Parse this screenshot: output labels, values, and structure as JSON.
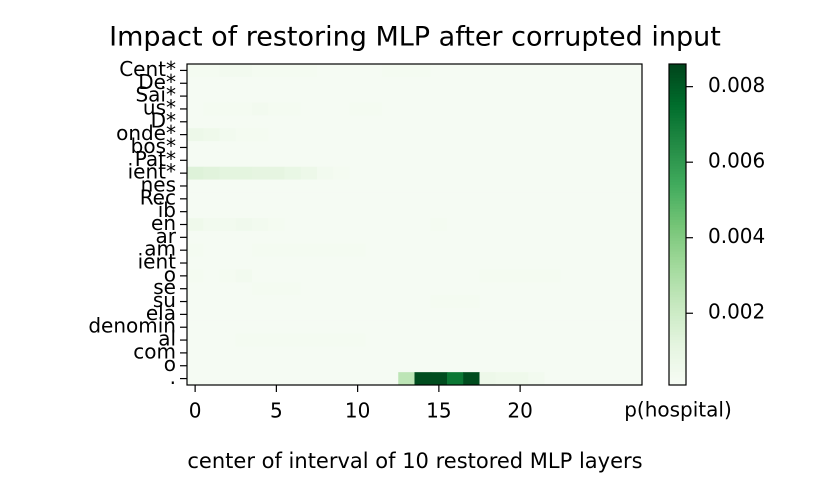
{
  "chart_data": {
    "type": "heatmap",
    "title": "Impact of restoring MLP after corrupted input",
    "xlabel": "center of interval of 10 restored MLP layers",
    "colorbar_label": "p(hospital)",
    "colormap": "Greens",
    "xlim": [
      -0.5,
      27.5
    ],
    "xticks": [
      0,
      5,
      10,
      15,
      20
    ],
    "zlim": [
      0.0001,
      0.0086
    ],
    "zticks": [
      0.002,
      0.004,
      0.006,
      0.008
    ],
    "categories": [
      "Cent*",
      "De*",
      "Sai*",
      "us*",
      "D*",
      "onde*",
      "bos*",
      "Pat*",
      "ient*",
      "nes",
      "Rec",
      "ib",
      "en",
      "ar",
      "am",
      "ient",
      "o",
      "se",
      "su",
      "ela",
      "denomin",
      "al",
      "com",
      "o",
      "."
    ],
    "values": [
      [
        0.0003,
        0.0003,
        0.0004,
        0.0004,
        0.0003,
        0.0003,
        0.0003,
        0.0003,
        0.0002,
        0.0002,
        0.0002,
        0.0002,
        0.0003,
        0.0003,
        0.0003,
        0.0002,
        0.0002,
        0.0002,
        0.0002,
        0.0002,
        0.0002,
        0.0002,
        0.0002,
        0.0002,
        0.0002,
        0.0002,
        0.0002,
        0.0002
      ],
      [
        0.0002,
        0.0002,
        0.0002,
        0.0002,
        0.0002,
        0.0002,
        0.0002,
        0.0002,
        0.0002,
        0.0002,
        0.0002,
        0.0002,
        0.0002,
        0.0002,
        0.0002,
        0.0002,
        0.0002,
        0.0002,
        0.0002,
        0.0002,
        0.0002,
        0.0002,
        0.0002,
        0.0002,
        0.0002,
        0.0002,
        0.0002,
        0.0002
      ],
      [
        0.0002,
        0.0002,
        0.0002,
        0.0002,
        0.0002,
        0.0002,
        0.0002,
        0.0002,
        0.0002,
        0.0002,
        0.0002,
        0.0002,
        0.0002,
        0.0002,
        0.0002,
        0.0002,
        0.0002,
        0.0002,
        0.0002,
        0.0002,
        0.0002,
        0.0002,
        0.0002,
        0.0002,
        0.0002,
        0.0002,
        0.0002,
        0.0002
      ],
      [
        0.0002,
        0.0003,
        0.0003,
        0.0003,
        0.0004,
        0.0003,
        0.0003,
        0.0002,
        0.0002,
        0.0002,
        0.0003,
        0.0003,
        0.0002,
        0.0002,
        0.0002,
        0.0002,
        0.0002,
        0.0002,
        0.0002,
        0.0002,
        0.0002,
        0.0002,
        0.0002,
        0.0002,
        0.0002,
        0.0002,
        0.0002,
        0.0002
      ],
      [
        0.0002,
        0.0002,
        0.0002,
        0.0002,
        0.0002,
        0.0002,
        0.0002,
        0.0002,
        0.0002,
        0.0002,
        0.0002,
        0.0002,
        0.0002,
        0.0002,
        0.0002,
        0.0002,
        0.0002,
        0.0002,
        0.0002,
        0.0002,
        0.0002,
        0.0002,
        0.0002,
        0.0002,
        0.0002,
        0.0002,
        0.0002,
        0.0002
      ],
      [
        0.0007,
        0.0006,
        0.0004,
        0.0003,
        0.0003,
        0.0002,
        0.0002,
        0.0002,
        0.0002,
        0.0002,
        0.0002,
        0.0002,
        0.0002,
        0.0002,
        0.0002,
        0.0002,
        0.0002,
        0.0002,
        0.0002,
        0.0002,
        0.0002,
        0.0002,
        0.0002,
        0.0002,
        0.0002,
        0.0002,
        0.0002,
        0.0002
      ],
      [
        0.0002,
        0.0002,
        0.0002,
        0.0002,
        0.0002,
        0.0002,
        0.0002,
        0.0002,
        0.0002,
        0.0002,
        0.0002,
        0.0002,
        0.0002,
        0.0002,
        0.0002,
        0.0002,
        0.0002,
        0.0002,
        0.0002,
        0.0002,
        0.0002,
        0.0002,
        0.0002,
        0.0002,
        0.0002,
        0.0002,
        0.0002,
        0.0002
      ],
      [
        0.0002,
        0.0002,
        0.0002,
        0.0002,
        0.0002,
        0.0002,
        0.0002,
        0.0002,
        0.0002,
        0.0002,
        0.0002,
        0.0002,
        0.0002,
        0.0002,
        0.0002,
        0.0002,
        0.0002,
        0.0002,
        0.0002,
        0.0002,
        0.0002,
        0.0002,
        0.0002,
        0.0002,
        0.0002,
        0.0002,
        0.0002,
        0.0002
      ],
      [
        0.0014,
        0.0013,
        0.0012,
        0.0012,
        0.0011,
        0.0011,
        0.0009,
        0.0007,
        0.0004,
        0.0003,
        0.0002,
        0.0002,
        0.0002,
        0.0002,
        0.0002,
        0.0002,
        0.0002,
        0.0002,
        0.0002,
        0.0002,
        0.0002,
        0.0002,
        0.0002,
        0.0002,
        0.0002,
        0.0002,
        0.0002,
        0.0002
      ],
      [
        0.0002,
        0.0002,
        0.0002,
        0.0002,
        0.0002,
        0.0002,
        0.0002,
        0.0002,
        0.0002,
        0.0002,
        0.0002,
        0.0002,
        0.0002,
        0.0002,
        0.0002,
        0.0002,
        0.0002,
        0.0002,
        0.0002,
        0.0002,
        0.0002,
        0.0002,
        0.0002,
        0.0002,
        0.0002,
        0.0002,
        0.0002,
        0.0002
      ],
      [
        0.0002,
        0.0002,
        0.0002,
        0.0002,
        0.0002,
        0.0002,
        0.0002,
        0.0002,
        0.0002,
        0.0002,
        0.0002,
        0.0002,
        0.0002,
        0.0002,
        0.0002,
        0.0002,
        0.0002,
        0.0002,
        0.0002,
        0.0002,
        0.0002,
        0.0002,
        0.0002,
        0.0002,
        0.0002,
        0.0002,
        0.0002,
        0.0002
      ],
      [
        0.0002,
        0.0002,
        0.0002,
        0.0002,
        0.0002,
        0.0002,
        0.0002,
        0.0002,
        0.0002,
        0.0002,
        0.0002,
        0.0002,
        0.0002,
        0.0002,
        0.0002,
        0.0002,
        0.0002,
        0.0002,
        0.0002,
        0.0002,
        0.0002,
        0.0002,
        0.0002,
        0.0002,
        0.0002,
        0.0002,
        0.0002,
        0.0002
      ],
      [
        0.0006,
        0.0004,
        0.0004,
        0.0005,
        0.0004,
        0.0003,
        0.0002,
        0.0002,
        0.0002,
        0.0002,
        0.0002,
        0.0002,
        0.0002,
        0.0002,
        0.0002,
        0.0003,
        0.0002,
        0.0002,
        0.0002,
        0.0002,
        0.0002,
        0.0002,
        0.0002,
        0.0002,
        0.0002,
        0.0002,
        0.0002,
        0.0002
      ],
      [
        0.0002,
        0.0002,
        0.0002,
        0.0002,
        0.0002,
        0.0002,
        0.0002,
        0.0002,
        0.0002,
        0.0002,
        0.0002,
        0.0002,
        0.0002,
        0.0002,
        0.0002,
        0.0002,
        0.0002,
        0.0002,
        0.0002,
        0.0002,
        0.0002,
        0.0002,
        0.0002,
        0.0002,
        0.0002,
        0.0002,
        0.0002,
        0.0002
      ],
      [
        0.0003,
        0.0002,
        0.0002,
        0.0002,
        0.0003,
        0.0003,
        0.0003,
        0.0003,
        0.0003,
        0.0003,
        0.0003,
        0.0002,
        0.0002,
        0.0002,
        0.0002,
        0.0002,
        0.0002,
        0.0002,
        0.0002,
        0.0002,
        0.0002,
        0.0002,
        0.0002,
        0.0002,
        0.0002,
        0.0002,
        0.0002,
        0.0002
      ],
      [
        0.0002,
        0.0002,
        0.0002,
        0.0002,
        0.0002,
        0.0002,
        0.0002,
        0.0002,
        0.0002,
        0.0002,
        0.0002,
        0.0002,
        0.0002,
        0.0002,
        0.0002,
        0.0002,
        0.0002,
        0.0002,
        0.0002,
        0.0002,
        0.0002,
        0.0002,
        0.0002,
        0.0002,
        0.0002,
        0.0002,
        0.0002,
        0.0002
      ],
      [
        0.0003,
        0.0002,
        0.0003,
        0.0004,
        0.0002,
        0.0002,
        0.0002,
        0.0002,
        0.0002,
        0.0002,
        0.0002,
        0.0002,
        0.0002,
        0.0002,
        0.0002,
        0.0002,
        0.0002,
        0.0002,
        0.0003,
        0.0003,
        0.0003,
        0.0003,
        0.0003,
        0.0002,
        0.0002,
        0.0002,
        0.0002,
        0.0002
      ],
      [
        0.0002,
        0.0002,
        0.0002,
        0.0002,
        0.0003,
        0.0003,
        0.0003,
        0.0002,
        0.0002,
        0.0002,
        0.0002,
        0.0002,
        0.0002,
        0.0002,
        0.0002,
        0.0002,
        0.0002,
        0.0002,
        0.0002,
        0.0002,
        0.0002,
        0.0002,
        0.0002,
        0.0002,
        0.0002,
        0.0002,
        0.0002,
        0.0002
      ],
      [
        0.0002,
        0.0002,
        0.0002,
        0.0002,
        0.0002,
        0.0002,
        0.0002,
        0.0002,
        0.0002,
        0.0002,
        0.0002,
        0.0002,
        0.0002,
        0.0002,
        0.0002,
        0.0003,
        0.0003,
        0.0003,
        0.0002,
        0.0002,
        0.0002,
        0.0002,
        0.0002,
        0.0002,
        0.0002,
        0.0002,
        0.0002,
        0.0002
      ],
      [
        0.0002,
        0.0002,
        0.0002,
        0.0002,
        0.0002,
        0.0002,
        0.0002,
        0.0002,
        0.0002,
        0.0002,
        0.0002,
        0.0002,
        0.0002,
        0.0002,
        0.0002,
        0.0002,
        0.0002,
        0.0002,
        0.0002,
        0.0002,
        0.0002,
        0.0002,
        0.0002,
        0.0002,
        0.0002,
        0.0002,
        0.0002,
        0.0002
      ],
      [
        0.0002,
        0.0002,
        0.0002,
        0.0002,
        0.0002,
        0.0002,
        0.0002,
        0.0002,
        0.0002,
        0.0002,
        0.0002,
        0.0002,
        0.0002,
        0.0002,
        0.0002,
        0.0002,
        0.0002,
        0.0002,
        0.0002,
        0.0002,
        0.0002,
        0.0002,
        0.0002,
        0.0002,
        0.0002,
        0.0002,
        0.0002,
        0.0002
      ],
      [
        0.0002,
        0.0002,
        0.0002,
        0.0003,
        0.0003,
        0.0003,
        0.0003,
        0.0003,
        0.0003,
        0.0003,
        0.0003,
        0.0002,
        0.0002,
        0.0002,
        0.0002,
        0.0002,
        0.0002,
        0.0002,
        0.0002,
        0.0002,
        0.0002,
        0.0002,
        0.0002,
        0.0002,
        0.0002,
        0.0002,
        0.0002,
        0.0002
      ],
      [
        0.0002,
        0.0002,
        0.0002,
        0.0002,
        0.0002,
        0.0002,
        0.0002,
        0.0002,
        0.0002,
        0.0002,
        0.0002,
        0.0002,
        0.0002,
        0.0002,
        0.0002,
        0.0002,
        0.0002,
        0.0002,
        0.0002,
        0.0002,
        0.0002,
        0.0002,
        0.0002,
        0.0002,
        0.0002,
        0.0002,
        0.0002,
        0.0002
      ],
      [
        0.0002,
        0.0002,
        0.0002,
        0.0002,
        0.0002,
        0.0002,
        0.0002,
        0.0002,
        0.0002,
        0.0002,
        0.0002,
        0.0002,
        0.0002,
        0.0002,
        0.0002,
        0.0002,
        0.0002,
        0.0002,
        0.0002,
        0.0002,
        0.0002,
        0.0002,
        0.0002,
        0.0002,
        0.0002,
        0.0002,
        0.0002,
        0.0002
      ],
      [
        0.0002,
        0.0002,
        0.0002,
        0.0002,
        0.0002,
        0.0002,
        0.0002,
        0.0002,
        0.0002,
        0.0002,
        0.0002,
        0.0002,
        0.0002,
        0.0025,
        0.0084,
        0.0084,
        0.0072,
        0.0084,
        0.0007,
        0.0006,
        0.0006,
        0.0004,
        0.0002,
        0.0002,
        0.0002,
        0.0002,
        0.0002,
        0.0002
      ]
    ]
  }
}
